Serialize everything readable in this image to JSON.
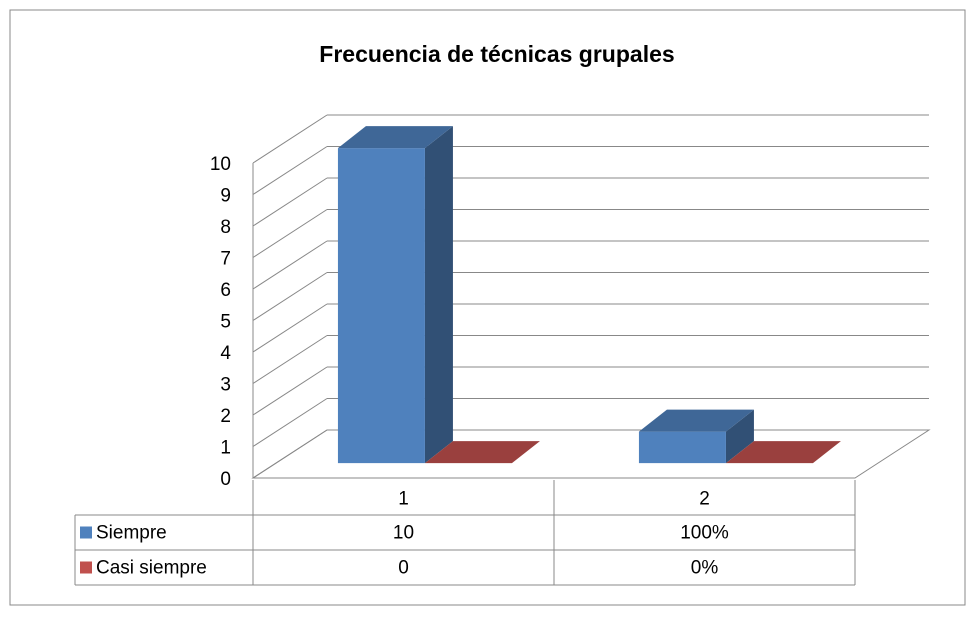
{
  "chart_data": {
    "type": "bar3d",
    "title": "Frecuencia de técnicas grupales",
    "categories": [
      "1",
      "2"
    ],
    "series": [
      {
        "name": "Siempre",
        "color": "#4f81bd",
        "values": [
          10,
          1
        ],
        "value_labels": [
          "10",
          "100%"
        ]
      },
      {
        "name": "Casi siempre",
        "color": "#c0504d",
        "values": [
          0,
          0
        ],
        "value_labels": [
          "0",
          "0%"
        ]
      }
    ],
    "ylim": [
      0,
      10
    ],
    "yticks": [
      0,
      1,
      2,
      3,
      4,
      5,
      6,
      7,
      8,
      9,
      10
    ],
    "grid": true
  }
}
